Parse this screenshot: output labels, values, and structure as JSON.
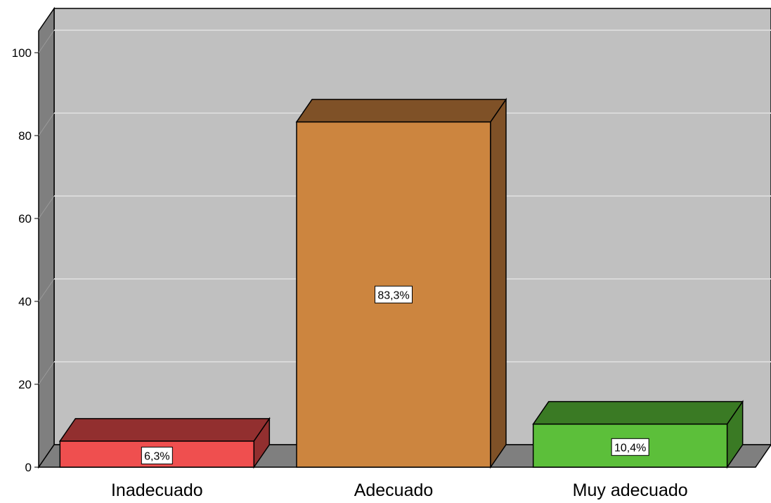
{
  "chart_data": {
    "type": "bar",
    "style": "3d",
    "categories": [
      "Inadecuado",
      "Adecuado",
      "Muy adecuado"
    ],
    "values": [
      6.3,
      83.3,
      10.4
    ],
    "data_labels": [
      "6,3%",
      "83,3%",
      "10,4%"
    ],
    "y_ticks": [
      "0",
      "20",
      "40",
      "60",
      "80",
      "100"
    ],
    "ylim": [
      0,
      110
    ],
    "grid": true,
    "title": "",
    "xlabel": "",
    "ylabel": "",
    "colors": {
      "wall": "#c0c0c0",
      "side_wall": "#7f7f7f",
      "floor": "#7f7f7f",
      "gridline": "#d9d9d9",
      "bars": [
        {
          "front": "#ef4f4f",
          "top": "#922f2f",
          "side": "#922f2f"
        },
        {
          "front": "#cc853f",
          "top": "#7f5127",
          "side": "#7f5127"
        },
        {
          "front": "#5cbf3a",
          "top": "#3a7a24",
          "side": "#3a7a24"
        }
      ]
    }
  }
}
